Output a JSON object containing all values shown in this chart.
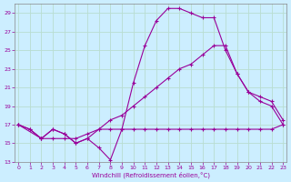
{
  "title": "",
  "xlabel": "Windchill (Refroidissement éolien,°C)",
  "ylabel": "",
  "bg_color": "#cceeff",
  "grid_color": "#aaddcc",
  "line_color": "#990099",
  "xmin": 0,
  "xmax": 23,
  "ymin": 13,
  "ymax": 30,
  "yticks": [
    13,
    15,
    17,
    19,
    21,
    23,
    25,
    27,
    29
  ],
  "xticks": [
    0,
    1,
    2,
    3,
    4,
    5,
    6,
    7,
    8,
    9,
    10,
    11,
    12,
    13,
    14,
    15,
    16,
    17,
    18,
    19,
    20,
    21,
    22,
    23
  ],
  "line1_x": [
    0,
    1,
    2,
    3,
    4,
    5,
    6,
    7,
    8,
    9,
    10,
    11,
    12,
    13,
    14,
    15,
    16,
    17,
    18,
    19,
    20,
    21,
    22,
    23
  ],
  "line1_y": [
    17.0,
    16.5,
    15.5,
    16.5,
    16.0,
    15.0,
    15.5,
    14.5,
    13.2,
    16.5,
    21.5,
    25.5,
    28.2,
    29.5,
    29.5,
    29.0,
    28.5,
    28.5,
    25.0,
    22.5,
    20.5,
    19.5,
    19.0,
    17.0
  ],
  "line2_x": [
    0,
    1,
    2,
    3,
    4,
    5,
    6,
    7,
    8,
    9,
    10,
    11,
    12,
    13,
    14,
    15,
    16,
    17,
    18,
    19,
    20,
    21,
    22,
    23
  ],
  "line2_y": [
    17.0,
    16.5,
    15.5,
    16.5,
    16.0,
    15.0,
    15.5,
    16.5,
    17.5,
    18.0,
    19.0,
    20.0,
    21.0,
    22.0,
    23.0,
    23.5,
    24.5,
    25.5,
    25.5,
    22.5,
    20.5,
    20.0,
    19.5,
    17.5
  ],
  "line3_x": [
    0,
    2,
    3,
    4,
    5,
    6,
    7,
    8,
    9,
    10,
    11,
    12,
    13,
    14,
    15,
    16,
    17,
    18,
    19,
    20,
    21,
    22,
    23
  ],
  "line3_y": [
    17.0,
    15.5,
    15.5,
    15.5,
    15.5,
    16.0,
    16.5,
    16.5,
    16.5,
    16.5,
    16.5,
    16.5,
    16.5,
    16.5,
    16.5,
    16.5,
    16.5,
    16.5,
    16.5,
    16.5,
    16.5,
    16.5,
    17.0
  ]
}
